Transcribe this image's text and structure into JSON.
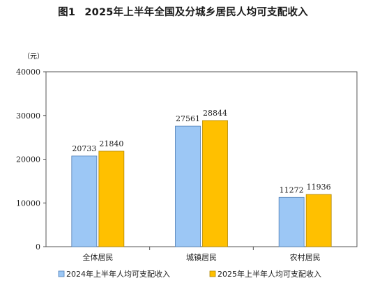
{
  "title": {
    "figure": "图1",
    "text": "2025年上半年全国及分城乡居民人均可支配收入"
  },
  "colors": {
    "series_2024": "#9cc7f5",
    "series_2025": "#ffc000",
    "bar_edge_2024": "#4d7db6",
    "bar_edge_2025": "#b08500"
  },
  "chart_data": {
    "type": "bar",
    "title": "2025年上半年全国及分城乡居民人均可支配收入",
    "unit": "（元）",
    "categories": [
      "全体居民",
      "城镇居民",
      "农村居民"
    ],
    "series": [
      {
        "name": "2024年上半年人均可支配收入",
        "values": [
          20733,
          27561,
          11272
        ]
      },
      {
        "name": "2025年上半年人均可支配收入",
        "values": [
          21840,
          28844,
          11936
        ]
      }
    ],
    "ylim": [
      0,
      40000
    ],
    "yticks": [
      0,
      10000,
      20000,
      30000,
      40000
    ],
    "grid": false,
    "legend_position": "bottom"
  }
}
